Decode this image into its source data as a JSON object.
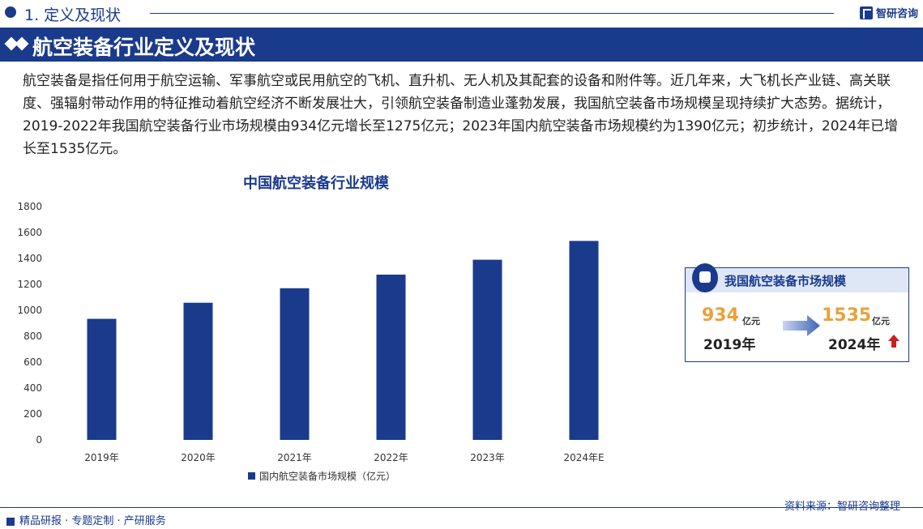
{
  "header": {
    "section_title": "1. 定义及现状",
    "logo_text": "智研咨询"
  },
  "banner": {
    "title": "航空装备行业定义及现状"
  },
  "paragraph": "航空装备是指任何用于航空运输、军事航空或民用航空的飞机、直升机、无人机及其配套的设备和附件等。近几年来，大飞机长产业链、高关联度、强辐射带动作用的特征推动着航空经济不断发展壮大，引领航空装备制造业蓬勃发展，我国航空装备市场规模呈现持续扩大态势。据统计，2019-2022年我国航空装备行业市场规模由934亿元增长至1275亿元；2023年国内航空装备市场规模约为1390亿元；初步统计，2024年已增长至1535亿元。",
  "chart_data": {
    "type": "bar",
    "title": "中国航空装备行业规模",
    "categories": [
      "2019年",
      "2020年",
      "2021年",
      "2022年",
      "2023年",
      "2024年E"
    ],
    "series": [
      {
        "name": "国内航空装备市场规模（亿元）",
        "values": [
          934,
          1058,
          1170,
          1275,
          1390,
          1535
        ],
        "color": "#1a3a8c"
      }
    ],
    "ylim": [
      0,
      1800
    ],
    "yticks": [
      0,
      200,
      400,
      600,
      800,
      1000,
      1200,
      1400,
      1600,
      1800
    ],
    "legend_position": "bottom",
    "grid": false
  },
  "infobox": {
    "title": "我国航空装备市场规模",
    "start_value": "934",
    "start_unit": "亿元",
    "start_year": "2019年",
    "end_value": "1535",
    "end_unit": "亿元",
    "end_year": "2024年"
  },
  "source": "资料来源：智研咨询整理",
  "footer": {
    "tagline": "精品研报 · 专题定制 · 产研服务"
  },
  "colors": {
    "primary": "#1a3a8c",
    "accent": "#e8a23a",
    "up_arrow": "#cc1f1f"
  }
}
